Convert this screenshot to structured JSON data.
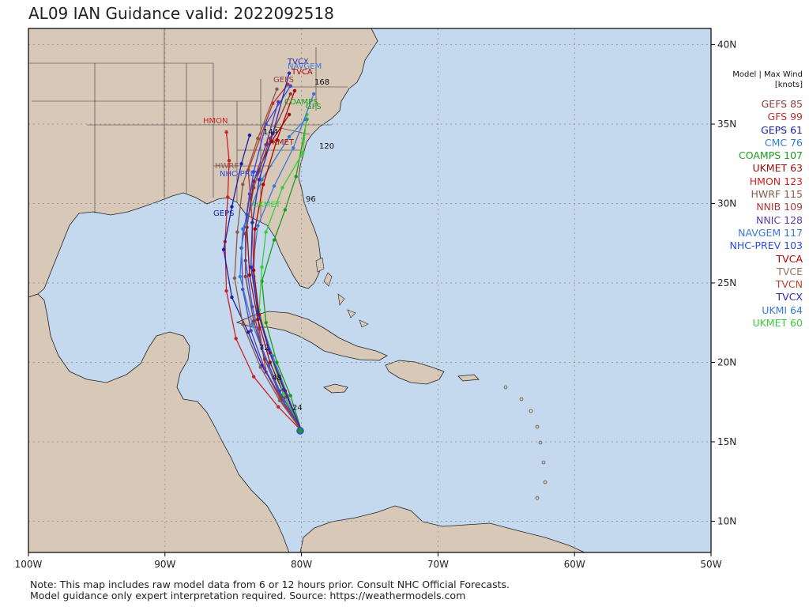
{
  "title": "AL09 IAN Guidance valid: 2022092518",
  "legend_header": [
    "Model | Max Wind",
    "[knots]"
  ],
  "legend": [
    {
      "name": "GEFS",
      "wind": "85",
      "color": "#8c3a3a"
    },
    {
      "name": "GFS",
      "wind": "99",
      "color": "#c03030"
    },
    {
      "name": "GEPS",
      "wind": "61",
      "color": "#1c1ca8"
    },
    {
      "name": "CMC",
      "wind": "76",
      "color": "#2f7fd6"
    },
    {
      "name": "COAMPS",
      "wind": "107",
      "color": "#1a9e1a"
    },
    {
      "name": "UKMET",
      "wind": "63",
      "color": "#9a0c0c"
    },
    {
      "name": "HMON",
      "wind": "123",
      "color": "#cc2222"
    },
    {
      "name": "HWRF",
      "wind": "115",
      "color": "#8a5a4a"
    },
    {
      "name": "NNIB",
      "wind": "109",
      "color": "#b03a3a"
    },
    {
      "name": "NNIC",
      "wind": "128",
      "color": "#5a3ab0"
    },
    {
      "name": "NAVGEM",
      "wind": "117",
      "color": "#3a7ad6"
    },
    {
      "name": "NHC-PREV",
      "wind": "103",
      "color": "#2a4ee0"
    },
    {
      "name": "TVCA",
      "wind": "",
      "color": "#b00000"
    },
    {
      "name": "TVCE",
      "wind": "",
      "color": "#9a7060"
    },
    {
      "name": "TVCN",
      "wind": "",
      "color": "#c04030"
    },
    {
      "name": "TVCX",
      "wind": "",
      "color": "#2a2ab8"
    },
    {
      "name": "UKMI",
      "wind": "64",
      "color": "#3a78d8"
    },
    {
      "name": "UKMET",
      "wind": "60",
      "color": "#3acc3a"
    }
  ],
  "lat_labels": [
    "40N",
    "35N",
    "30N",
    "25N",
    "20N",
    "15N",
    "10N"
  ],
  "lon_labels": [
    "100W",
    "90W",
    "80W",
    "70W",
    "60W",
    "50W"
  ],
  "map_labels": {
    "models": [
      "TVCX",
      "NAVGEM",
      "TVCA",
      "GEFS",
      "COAMPS",
      "GFS",
      "HMON",
      "UKMET",
      "HWRF",
      "NHC-PREV",
      "GEPS",
      "UKMET"
    ],
    "hours": [
      "24",
      "48",
      "72",
      "96",
      "120",
      "144",
      "168"
    ]
  },
  "tracks": [
    {
      "model": "GFS",
      "color": "#c03030",
      "pts": [
        [
          -80,
          15.7
        ],
        [
          -81.5,
          17.6
        ],
        [
          -82.6,
          19.4
        ],
        [
          -83.1,
          22.1
        ],
        [
          -83.5,
          25.4
        ],
        [
          -83.6,
          28.8
        ],
        [
          -83.9,
          32.1
        ],
        [
          -82.1,
          36.3
        ],
        [
          -81.0,
          37.5
        ]
      ]
    },
    {
      "model": "HMON",
      "color": "#cc2222",
      "pts": [
        [
          -80,
          15.7
        ],
        [
          -81.7,
          17.2
        ],
        [
          -83.5,
          19.1
        ],
        [
          -84.8,
          21.5
        ],
        [
          -85.5,
          24.5
        ],
        [
          -85.6,
          27.6
        ],
        [
          -85.4,
          30.4
        ],
        [
          -85.3,
          32.7
        ],
        [
          -85.5,
          34.5
        ]
      ]
    },
    {
      "model": "UKMET",
      "color": "#9a0c0c",
      "pts": [
        [
          -80,
          15.7
        ],
        [
          -81.2,
          17.8
        ],
        [
          -82.3,
          20.0
        ],
        [
          -83.2,
          22.7
        ],
        [
          -83.8,
          25.5
        ],
        [
          -84.0,
          28.5
        ],
        [
          -83.5,
          31.4
        ],
        [
          -82.2,
          33.9
        ],
        [
          -80.9,
          35.6
        ]
      ]
    },
    {
      "model": "COAMPS",
      "color": "#1a9e1a",
      "pts": [
        [
          -80,
          15.7
        ],
        [
          -80.8,
          17.9
        ],
        [
          -81.8,
          20.0
        ],
        [
          -82.6,
          22.5
        ],
        [
          -82.9,
          25.1
        ],
        [
          -82.0,
          27.7
        ],
        [
          -81.2,
          29.6
        ],
        [
          -80.4,
          31.7
        ],
        [
          -79.6,
          35.3
        ]
      ]
    },
    {
      "model": "UKMET",
      "color": "#3acc3a",
      "pts": [
        [
          -80,
          15.7
        ],
        [
          -81.3,
          18.0
        ],
        [
          -82.4,
          20.8
        ],
        [
          -83.1,
          23.3
        ],
        [
          -82.9,
          26.0
        ],
        [
          -82.6,
          28.2
        ],
        [
          -81.4,
          31.0
        ],
        [
          -79.9,
          33.2
        ],
        [
          -79.6,
          35.6
        ]
      ]
    },
    {
      "model": "GEPS",
      "color": "#1c1ca8",
      "pts": [
        [
          -80,
          15.7
        ],
        [
          -81.5,
          17.8
        ],
        [
          -82.9,
          19.8
        ],
        [
          -83.9,
          21.9
        ],
        [
          -85.1,
          24.1
        ],
        [
          -85.7,
          27.1
        ],
        [
          -85.1,
          29.8
        ],
        [
          -84.4,
          32.5
        ],
        [
          -83.8,
          34.3
        ]
      ]
    },
    {
      "model": "NNIC",
      "color": "#5a3ab0",
      "pts": [
        [
          -80,
          15.7
        ],
        [
          -81.4,
          17.6
        ],
        [
          -82.7,
          19.6
        ],
        [
          -83.7,
          22.0
        ],
        [
          -84.3,
          24.6
        ],
        [
          -84.4,
          27.2
        ],
        [
          -83.8,
          30.6
        ],
        [
          -82.6,
          33.7
        ],
        [
          -81.7,
          36.4
        ]
      ]
    },
    {
      "model": "UKMI",
      "color": "#3a78d8",
      "pts": [
        [
          -80,
          15.7
        ],
        [
          -81.0,
          17.9
        ],
        [
          -82.1,
          20.4
        ],
        [
          -83.1,
          22.9
        ],
        [
          -83.6,
          25.9
        ],
        [
          -83.2,
          28.6
        ],
        [
          -82.0,
          31.1
        ],
        [
          -80.6,
          33.5
        ],
        [
          -79.1,
          36.9
        ]
      ]
    },
    {
      "model": "CMC",
      "color": "#2f7fd6",
      "pts": [
        [
          -80,
          15.7
        ],
        [
          -81.3,
          17.5
        ],
        [
          -82.4,
          19.8
        ],
        [
          -83.6,
          22.4
        ],
        [
          -84.5,
          25.4
        ],
        [
          -84.3,
          28.4
        ],
        [
          -82.9,
          31.5
        ],
        [
          -80.9,
          34.2
        ],
        [
          -79.7,
          35.3
        ]
      ]
    },
    {
      "model": "NHC-PREV",
      "color": "#2a4ee0",
      "pts": [
        [
          -80,
          15.7
        ],
        [
          -81.6,
          18.2
        ],
        [
          -82.9,
          20.9
        ],
        [
          -83.6,
          23.5
        ],
        [
          -84.1,
          26.4
        ],
        [
          -84.0,
          29.3
        ],
        [
          -83.5,
          32.0
        ],
        [
          -82.6,
          35.0
        ],
        [
          -80.8,
          37.4
        ]
      ]
    },
    {
      "model": "HWRF",
      "color": "#8a5a4a",
      "pts": [
        [
          -80,
          15.7
        ],
        [
          -81.6,
          17.6
        ],
        [
          -83.0,
          19.7
        ],
        [
          -84.3,
          22.4
        ],
        [
          -84.9,
          25.3
        ],
        [
          -84.7,
          28.2
        ],
        [
          -84.3,
          31.2
        ],
        [
          -83.2,
          34.1
        ],
        [
          -81.8,
          37.2
        ]
      ]
    },
    {
      "model": "GEFS",
      "color": "#8c3a3a",
      "pts": [
        [
          -80,
          15.7
        ],
        [
          -81.5,
          17.8
        ],
        [
          -82.7,
          20.2
        ],
        [
          -83.5,
          22.6
        ],
        [
          -84.1,
          25.4
        ],
        [
          -84.1,
          28.1
        ],
        [
          -83.5,
          31.0
        ],
        [
          -82.3,
          34.1
        ],
        [
          -80.8,
          36.9
        ]
      ]
    },
    {
      "model": "TVCA",
      "color": "#b00000",
      "pts": [
        [
          -80,
          15.7
        ],
        [
          -81.2,
          18.2
        ],
        [
          -82.3,
          20.6
        ],
        [
          -83.1,
          23.0
        ],
        [
          -83.5,
          25.8
        ],
        [
          -83.4,
          28.4
        ],
        [
          -82.8,
          31.2
        ],
        [
          -81.8,
          34.0
        ],
        [
          -80.5,
          37.1
        ]
      ]
    },
    {
      "model": "TVCX",
      "color": "#2a2ab8",
      "pts": [
        [
          -80,
          15.7
        ],
        [
          -81.3,
          18.3
        ],
        [
          -82.4,
          20.8
        ],
        [
          -83.2,
          23.2
        ],
        [
          -83.7,
          26.0
        ],
        [
          -83.6,
          28.8
        ],
        [
          -83.1,
          31.5
        ],
        [
          -82.1,
          34.4
        ],
        [
          -80.9,
          38.2
        ]
      ]
    }
  ]
}
